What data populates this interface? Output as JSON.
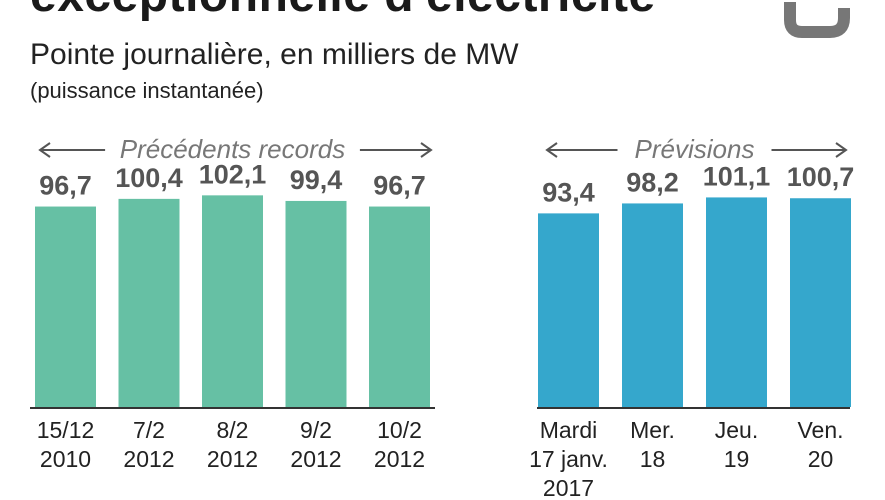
{
  "header": {
    "title": "exceptionnelle d'électricité",
    "subtitle": "Pointe journalière, en milliers de MW",
    "note": "(puissance instantanée)"
  },
  "chart_data": {
    "type": "bar",
    "title": "exceptionnelle d'électricité",
    "subtitle": "Pointe journalière, en milliers de MW",
    "unit_note": "(puissance instantanée)",
    "ylim": [
      0,
      102.1
    ],
    "grid": false,
    "groups": [
      {
        "label": "Précédents records",
        "color": "#66c0a4",
        "categories": [
          [
            "15/12",
            "2010"
          ],
          [
            "7/2",
            "2012"
          ],
          [
            "8/2",
            "2012"
          ],
          [
            "9/2",
            "2012"
          ],
          [
            "10/2",
            "2012"
          ]
        ],
        "values": [
          96.7,
          100.4,
          102.1,
          99.4,
          96.7
        ],
        "value_labels": [
          "96,7",
          "100,4",
          "102,1",
          "99,4",
          "96,7"
        ]
      },
      {
        "label": "Prévisions",
        "color": "#35a7cc",
        "categories": [
          [
            "Mardi",
            "17 janv.",
            "2017"
          ],
          [
            "Mer.",
            "18"
          ],
          [
            "Jeu.",
            "19"
          ],
          [
            "Ven.",
            "20"
          ]
        ],
        "values": [
          93.4,
          98.2,
          101.1,
          100.7
        ],
        "value_labels": [
          "93,4",
          "98,2",
          "101,1",
          "100,7"
        ]
      }
    ]
  },
  "colors": {
    "records": "#66c0a4",
    "forecast": "#35a7cc",
    "axis": "#333333",
    "group_label": "#777777",
    "value_label": "#555555"
  },
  "icons": {
    "logo": "plug-hook-icon"
  }
}
